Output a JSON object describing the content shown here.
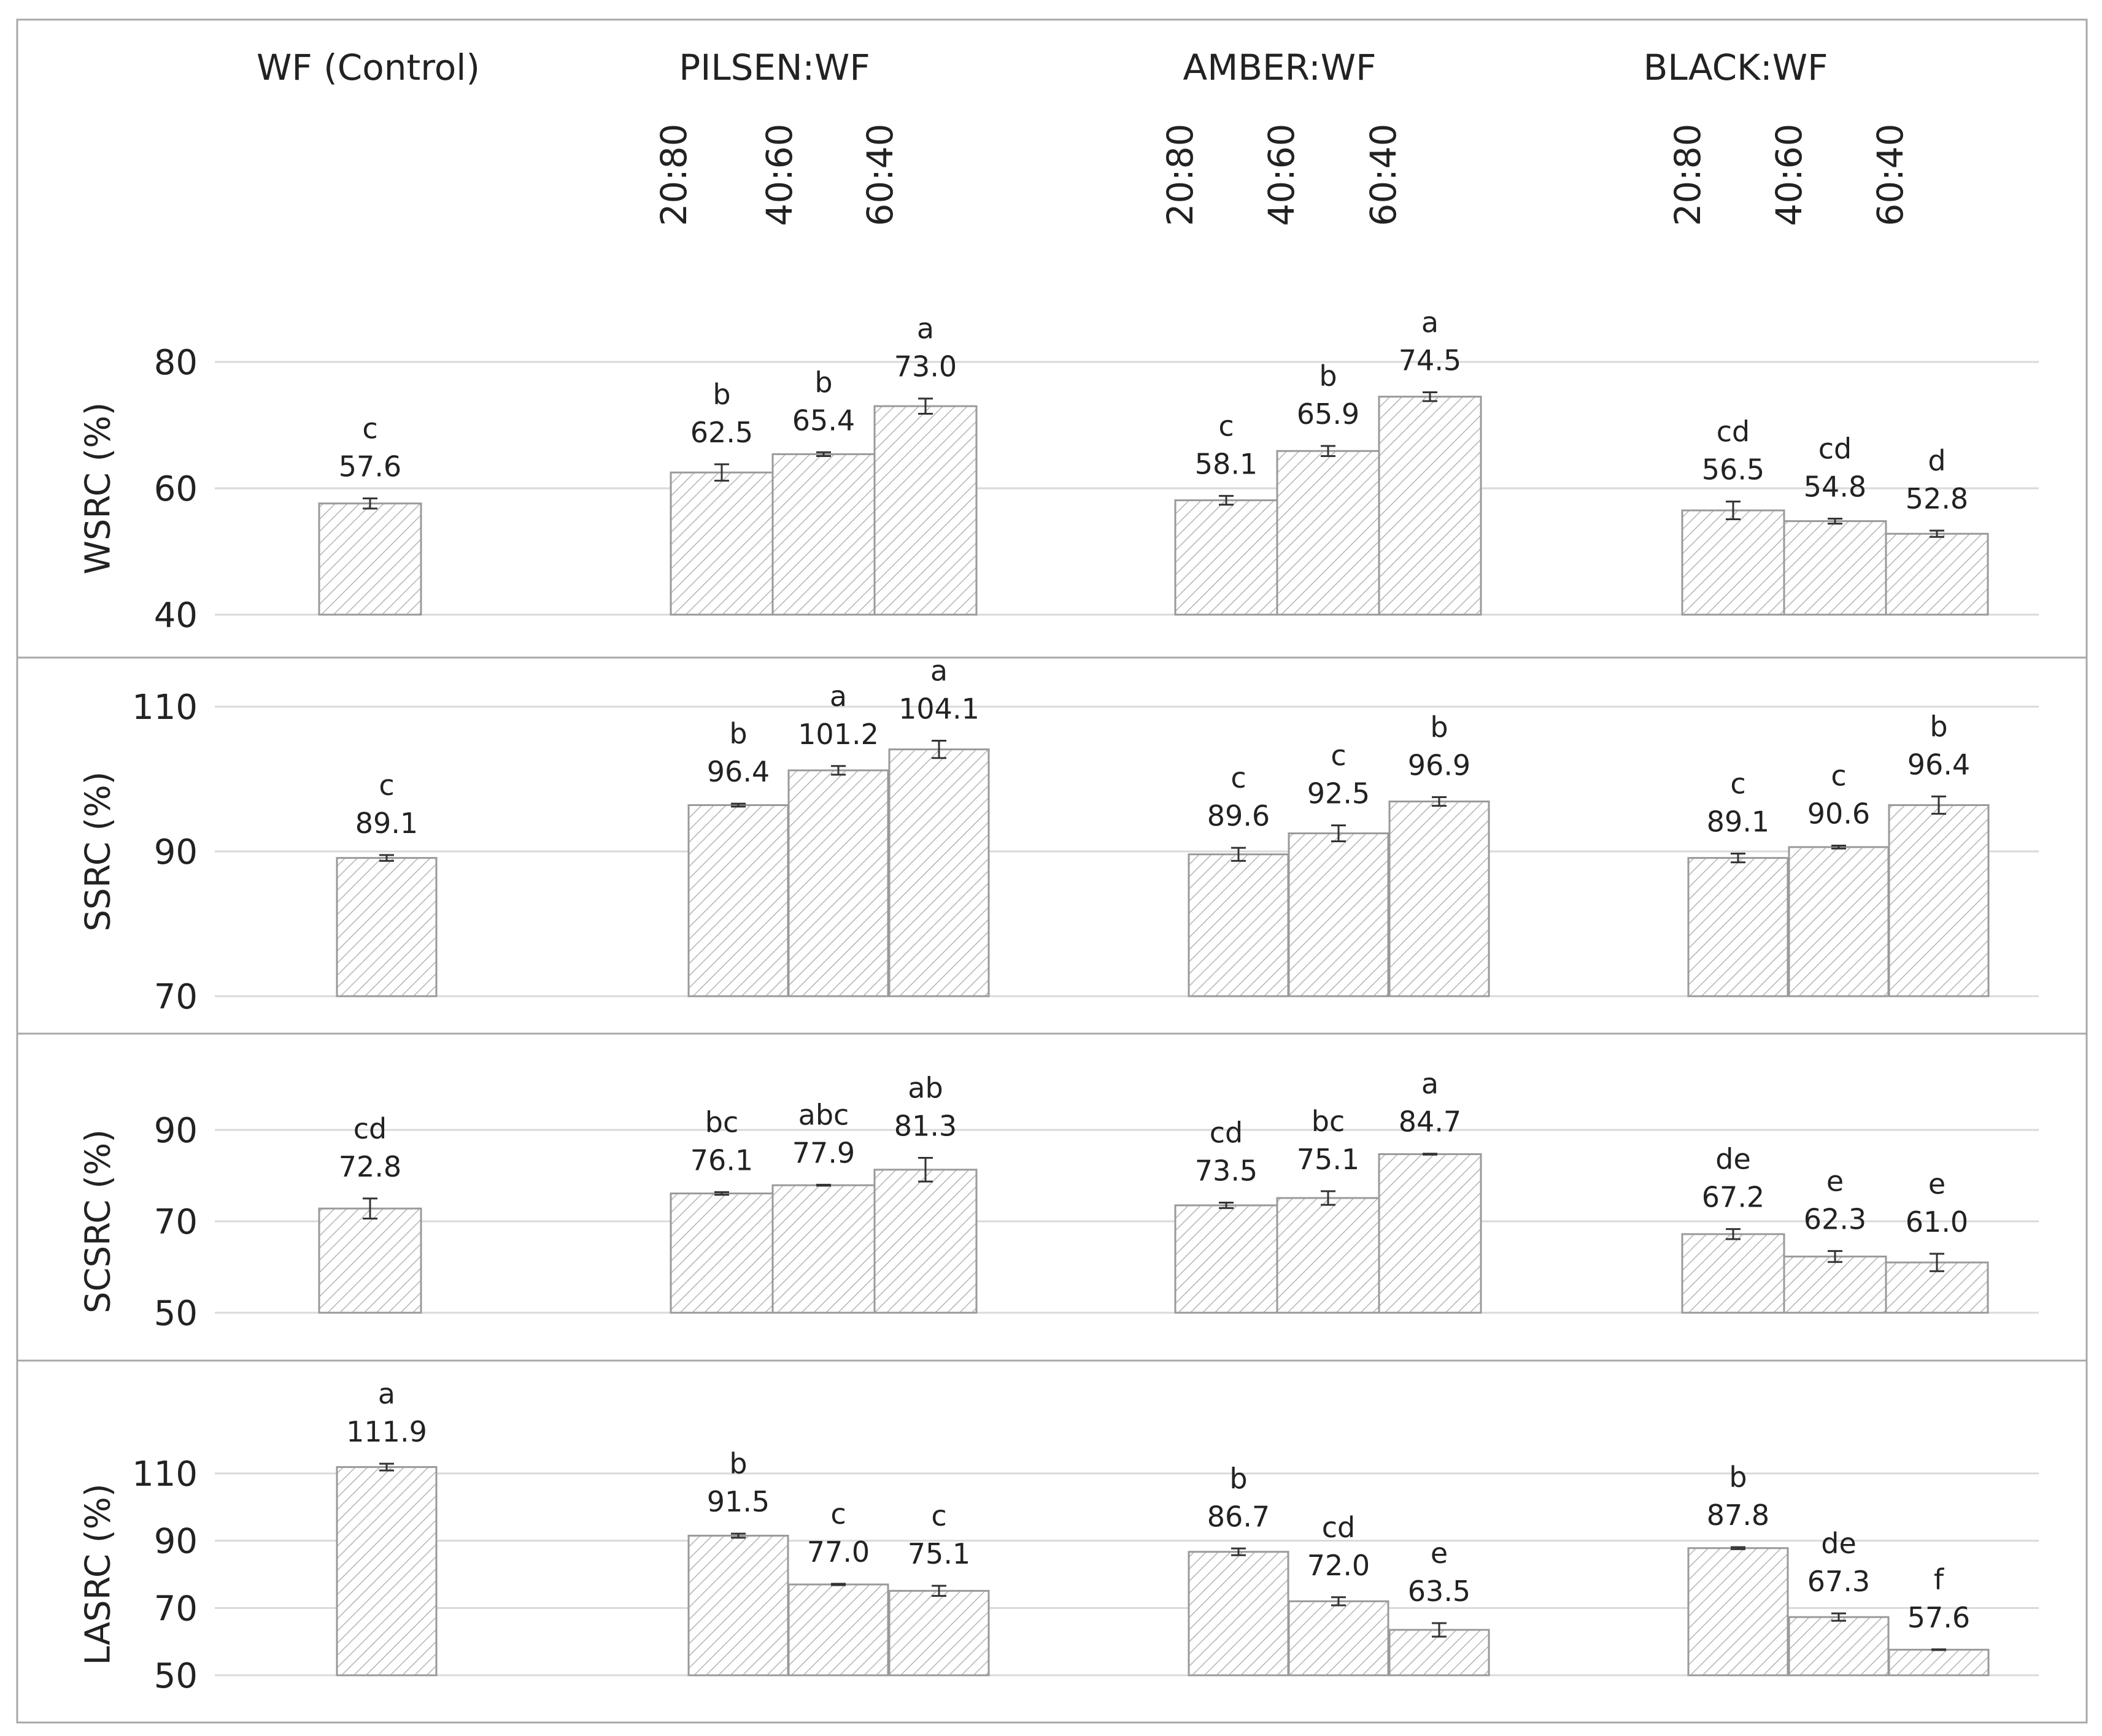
{
  "chart_data": {
    "type": "bar",
    "groups": [
      {
        "name": "WF (Control)",
        "ratios": [
          ""
        ]
      },
      {
        "name": "PILSEN:WF",
        "ratios": [
          "20:80",
          "40:60",
          "60:40"
        ]
      },
      {
        "name": "AMBER:WF",
        "ratios": [
          "20:80",
          "40:60",
          "60:40"
        ]
      },
      {
        "name": "BLACK:WF",
        "ratios": [
          "20:80",
          "40:60",
          "60:40"
        ]
      }
    ],
    "panels": [
      {
        "ylabel": "WSRC (%)",
        "ylim": [
          40,
          80
        ],
        "yticks": [
          40,
          60,
          80
        ],
        "values": [
          57.6,
          62.5,
          65.4,
          73.0,
          58.1,
          65.9,
          74.5,
          56.5,
          54.8,
          52.8
        ],
        "labels": [
          "57.6",
          "62.5",
          "65.4",
          "73.0",
          "58.1",
          "65.9",
          "74.5",
          "56.5",
          "54.8",
          "52.8"
        ],
        "errors": [
          0.8,
          1.3,
          0.3,
          1.2,
          0.7,
          0.8,
          0.7,
          1.4,
          0.4,
          0.5
        ],
        "letters": [
          "c",
          "b",
          "b",
          "a",
          "c",
          "b",
          "a",
          "cd",
          "cd",
          "d"
        ]
      },
      {
        "ylabel": "SSRC (%)",
        "ylim": [
          70,
          110
        ],
        "yticks": [
          70,
          90,
          110
        ],
        "values": [
          89.1,
          96.4,
          101.2,
          104.1,
          89.6,
          92.5,
          96.9,
          89.1,
          90.6,
          96.4
        ],
        "labels": [
          "89.1",
          "96.4",
          "101.2",
          "104.1",
          "89.6",
          "92.5",
          "96.9",
          "89.1",
          "90.6",
          "96.4"
        ],
        "errors": [
          0.4,
          0.2,
          0.6,
          1.2,
          0.9,
          1.1,
          0.6,
          0.6,
          0.2,
          1.2
        ],
        "letters": [
          "c",
          "b",
          "a",
          "a",
          "c",
          "c",
          "b",
          "c",
          "c",
          "b"
        ]
      },
      {
        "ylabel": "SCSRC (%)",
        "ylim": [
          50,
          90
        ],
        "yticks": [
          50,
          70,
          90
        ],
        "values": [
          72.8,
          76.1,
          77.9,
          81.3,
          73.5,
          75.1,
          84.7,
          67.2,
          62.3,
          61.0
        ],
        "labels": [
          "72.8",
          "76.1",
          "77.9",
          "81.3",
          "73.5",
          "75.1",
          "84.7",
          "67.2",
          "62.3",
          "61.0"
        ],
        "errors": [
          2.2,
          0.3,
          0.1,
          2.6,
          0.6,
          1.5,
          0.1,
          1.1,
          1.2,
          1.9
        ],
        "letters": [
          "cd",
          "bc",
          "abc",
          "ab",
          "cd",
          "bc",
          "a",
          "de",
          "e",
          "e"
        ]
      },
      {
        "ylabel": "LASRC (%)",
        "ylim": [
          50,
          110
        ],
        "yticks": [
          50,
          70,
          90,
          110
        ],
        "values": [
          111.9,
          91.5,
          77.0,
          75.1,
          86.7,
          72.0,
          63.5,
          87.8,
          67.3,
          57.6
        ],
        "labels": [
          "111.9",
          "91.5",
          "77.0",
          "75.1",
          "86.7",
          "72.0",
          "63.5",
          "87.8",
          "67.3",
          "57.6"
        ],
        "errors": [
          1.0,
          0.6,
          0.2,
          1.5,
          1.0,
          1.2,
          2.0,
          0.3,
          1.1,
          0.1
        ],
        "letters": [
          "a",
          "b",
          "c",
          "c",
          "b",
          "cd",
          "e",
          "b",
          "de",
          "f"
        ]
      }
    ],
    "grid": true,
    "bar_fill": "hatched",
    "colors": {
      "bar_stroke": "#9a9a9a",
      "hatch": "#b4b4b4",
      "grid": "#d9d9d9",
      "frame": "#a8a8a8",
      "text": "#222222"
    }
  }
}
